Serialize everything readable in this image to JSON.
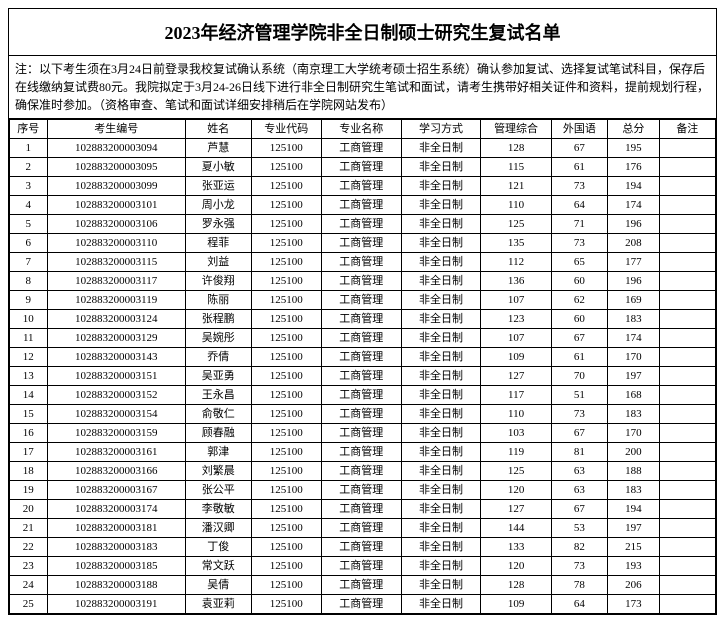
{
  "title": "2023年经济管理学院非全日制硕士研究生复试名单",
  "notice": "注：以下考生须在3月24日前登录我校复试确认系统（南京理工大学统考硕士招生系统）确认参加复试、选择复试笔试科目，保存后在线缴纳复试费80元。我院拟定于3月24-26日线下进行非全日制研究生笔试和面试，请考生携带好相关证件和资料，提前规划行程，确保准时参加。（资格审查、笔试和面试详细安排稍后在学院网站发布）",
  "columns": [
    "序号",
    "考生编号",
    "姓名",
    "专业代码",
    "专业名称",
    "学习方式",
    "管理综合",
    "外国语",
    "总分",
    "备注"
  ],
  "rows": [
    {
      "seq": "1",
      "id": "102883200003094",
      "name": "芦慧",
      "code": "125100",
      "major": "工商管理",
      "mode": "非全日制",
      "s1": "128",
      "s2": "67",
      "total": "195",
      "note": ""
    },
    {
      "seq": "2",
      "id": "102883200003095",
      "name": "夏小敏",
      "code": "125100",
      "major": "工商管理",
      "mode": "非全日制",
      "s1": "115",
      "s2": "61",
      "total": "176",
      "note": ""
    },
    {
      "seq": "3",
      "id": "102883200003099",
      "name": "张亚运",
      "code": "125100",
      "major": "工商管理",
      "mode": "非全日制",
      "s1": "121",
      "s2": "73",
      "total": "194",
      "note": ""
    },
    {
      "seq": "4",
      "id": "102883200003101",
      "name": "周小龙",
      "code": "125100",
      "major": "工商管理",
      "mode": "非全日制",
      "s1": "110",
      "s2": "64",
      "total": "174",
      "note": ""
    },
    {
      "seq": "5",
      "id": "102883200003106",
      "name": "罗永强",
      "code": "125100",
      "major": "工商管理",
      "mode": "非全日制",
      "s1": "125",
      "s2": "71",
      "total": "196",
      "note": ""
    },
    {
      "seq": "6",
      "id": "102883200003110",
      "name": "程菲",
      "code": "125100",
      "major": "工商管理",
      "mode": "非全日制",
      "s1": "135",
      "s2": "73",
      "total": "208",
      "note": ""
    },
    {
      "seq": "7",
      "id": "102883200003115",
      "name": "刘益",
      "code": "125100",
      "major": "工商管理",
      "mode": "非全日制",
      "s1": "112",
      "s2": "65",
      "total": "177",
      "note": ""
    },
    {
      "seq": "8",
      "id": "102883200003117",
      "name": "许俊翔",
      "code": "125100",
      "major": "工商管理",
      "mode": "非全日制",
      "s1": "136",
      "s2": "60",
      "total": "196",
      "note": ""
    },
    {
      "seq": "9",
      "id": "102883200003119",
      "name": "陈丽",
      "code": "125100",
      "major": "工商管理",
      "mode": "非全日制",
      "s1": "107",
      "s2": "62",
      "total": "169",
      "note": ""
    },
    {
      "seq": "10",
      "id": "102883200003124",
      "name": "张程鹏",
      "code": "125100",
      "major": "工商管理",
      "mode": "非全日制",
      "s1": "123",
      "s2": "60",
      "total": "183",
      "note": ""
    },
    {
      "seq": "11",
      "id": "102883200003129",
      "name": "吴婉彤",
      "code": "125100",
      "major": "工商管理",
      "mode": "非全日制",
      "s1": "107",
      "s2": "67",
      "total": "174",
      "note": ""
    },
    {
      "seq": "12",
      "id": "102883200003143",
      "name": "乔倩",
      "code": "125100",
      "major": "工商管理",
      "mode": "非全日制",
      "s1": "109",
      "s2": "61",
      "total": "170",
      "note": ""
    },
    {
      "seq": "13",
      "id": "102883200003151",
      "name": "吴亚勇",
      "code": "125100",
      "major": "工商管理",
      "mode": "非全日制",
      "s1": "127",
      "s2": "70",
      "total": "197",
      "note": ""
    },
    {
      "seq": "14",
      "id": "102883200003152",
      "name": "王永昌",
      "code": "125100",
      "major": "工商管理",
      "mode": "非全日制",
      "s1": "117",
      "s2": "51",
      "total": "168",
      "note": ""
    },
    {
      "seq": "15",
      "id": "102883200003154",
      "name": "俞敬仁",
      "code": "125100",
      "major": "工商管理",
      "mode": "非全日制",
      "s1": "110",
      "s2": "73",
      "total": "183",
      "note": ""
    },
    {
      "seq": "16",
      "id": "102883200003159",
      "name": "顾春融",
      "code": "125100",
      "major": "工商管理",
      "mode": "非全日制",
      "s1": "103",
      "s2": "67",
      "total": "170",
      "note": ""
    },
    {
      "seq": "17",
      "id": "102883200003161",
      "name": "郭津",
      "code": "125100",
      "major": "工商管理",
      "mode": "非全日制",
      "s1": "119",
      "s2": "81",
      "total": "200",
      "note": ""
    },
    {
      "seq": "18",
      "id": "102883200003166",
      "name": "刘繁晨",
      "code": "125100",
      "major": "工商管理",
      "mode": "非全日制",
      "s1": "125",
      "s2": "63",
      "total": "188",
      "note": ""
    },
    {
      "seq": "19",
      "id": "102883200003167",
      "name": "张公平",
      "code": "125100",
      "major": "工商管理",
      "mode": "非全日制",
      "s1": "120",
      "s2": "63",
      "total": "183",
      "note": ""
    },
    {
      "seq": "20",
      "id": "102883200003174",
      "name": "李敬敏",
      "code": "125100",
      "major": "工商管理",
      "mode": "非全日制",
      "s1": "127",
      "s2": "67",
      "total": "194",
      "note": ""
    },
    {
      "seq": "21",
      "id": "102883200003181",
      "name": "潘汉卿",
      "code": "125100",
      "major": "工商管理",
      "mode": "非全日制",
      "s1": "144",
      "s2": "53",
      "total": "197",
      "note": ""
    },
    {
      "seq": "22",
      "id": "102883200003183",
      "name": "丁俊",
      "code": "125100",
      "major": "工商管理",
      "mode": "非全日制",
      "s1": "133",
      "s2": "82",
      "total": "215",
      "note": ""
    },
    {
      "seq": "23",
      "id": "102883200003185",
      "name": "常文跃",
      "code": "125100",
      "major": "工商管理",
      "mode": "非全日制",
      "s1": "120",
      "s2": "73",
      "total": "193",
      "note": ""
    },
    {
      "seq": "24",
      "id": "102883200003188",
      "name": "吴倩",
      "code": "125100",
      "major": "工商管理",
      "mode": "非全日制",
      "s1": "128",
      "s2": "78",
      "total": "206",
      "note": ""
    },
    {
      "seq": "25",
      "id": "102883200003191",
      "name": "袁亚莉",
      "code": "125100",
      "major": "工商管理",
      "mode": "非全日制",
      "s1": "109",
      "s2": "64",
      "total": "173",
      "note": ""
    }
  ]
}
